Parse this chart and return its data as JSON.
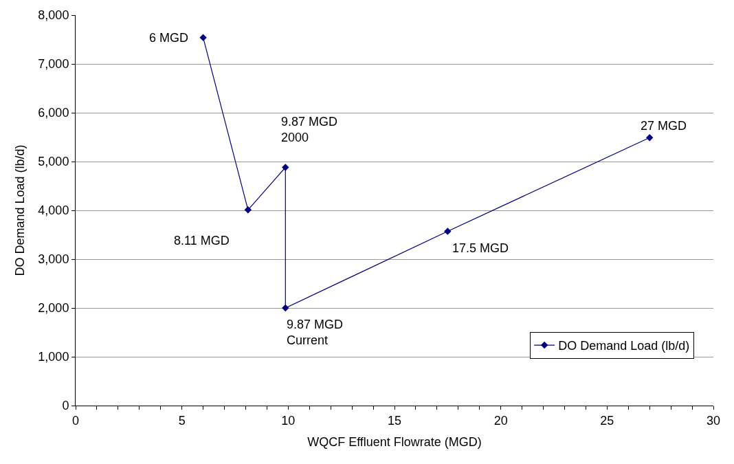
{
  "chart_data": {
    "type": "line",
    "xlabel": "WQCF Effluent Flowrate (MGD)",
    "ylabel": "DO Demand Load (lb/d)",
    "x": [
      6,
      8.11,
      9.87,
      9.87,
      17.5,
      27
    ],
    "series": [
      {
        "name": "DO Demand Load (lb/d)",
        "color": "#000080",
        "values": [
          7540,
          4010,
          4880,
          2000,
          3570,
          5490
        ]
      }
    ],
    "xlim": [
      0,
      30
    ],
    "xticks": [
      0,
      {
        "value": 1,
        "label": null
      },
      {
        "value": 2,
        "label": null
      },
      {
        "value": 3,
        "label": null
      },
      {
        "value": 4,
        "label": null
      },
      5,
      {
        "value": 6,
        "label": null
      },
      {
        "value": 7,
        "label": null
      },
      {
        "value": 8,
        "label": null
      },
      {
        "value": 9,
        "label": null
      },
      10,
      {
        "value": 11,
        "label": null
      },
      {
        "value": 12,
        "label": null
      },
      {
        "value": 13,
        "label": null
      },
      {
        "value": 14,
        "label": null
      },
      15,
      {
        "value": 16,
        "label": null
      },
      {
        "value": 17,
        "label": null
      },
      {
        "value": 18,
        "label": null
      },
      {
        "value": 19,
        "label": null
      },
      20,
      {
        "value": 21,
        "label": null
      },
      {
        "value": 22,
        "label": null
      },
      {
        "value": 23,
        "label": null
      },
      {
        "value": 24,
        "label": null
      },
      25,
      {
        "value": 26,
        "label": null
      },
      {
        "value": 27,
        "label": null
      },
      {
        "value": 28,
        "label": null
      },
      {
        "value": 29,
        "label": null
      },
      30
    ],
    "ylim": [
      0,
      8000
    ],
    "yticks": [
      {
        "value": 0,
        "label": "0"
      },
      {
        "value": 1000,
        "label": "1,000"
      },
      {
        "value": 2000,
        "label": "2,000"
      },
      {
        "value": 3000,
        "label": "3,000"
      },
      {
        "value": 4000,
        "label": "4,000"
      },
      {
        "value": 5000,
        "label": "5,000"
      },
      {
        "value": 6000,
        "label": "6,000"
      },
      {
        "value": 7000,
        "label": "7,000"
      },
      {
        "value": 8000,
        "label": "8,000"
      }
    ],
    "annotations": [
      {
        "text": "6 MGD",
        "x": 6,
        "y": 7540
      },
      {
        "text": "8.11 MGD",
        "x": 8.11,
        "y": 4010
      },
      {
        "text": "9.87 MGD\n2000",
        "x": 9.87,
        "y": 4880
      },
      {
        "text": "9.87 MGD\nCurrent",
        "x": 9.87,
        "y": 2000
      },
      {
        "text": "17.5 MGD",
        "x": 17.5,
        "y": 3570
      },
      {
        "text": "27 MGD",
        "x": 27,
        "y": 5490
      }
    ],
    "grid": "y",
    "legend": "bottom right",
    "marker": "diamond",
    "line_style": "solid"
  }
}
